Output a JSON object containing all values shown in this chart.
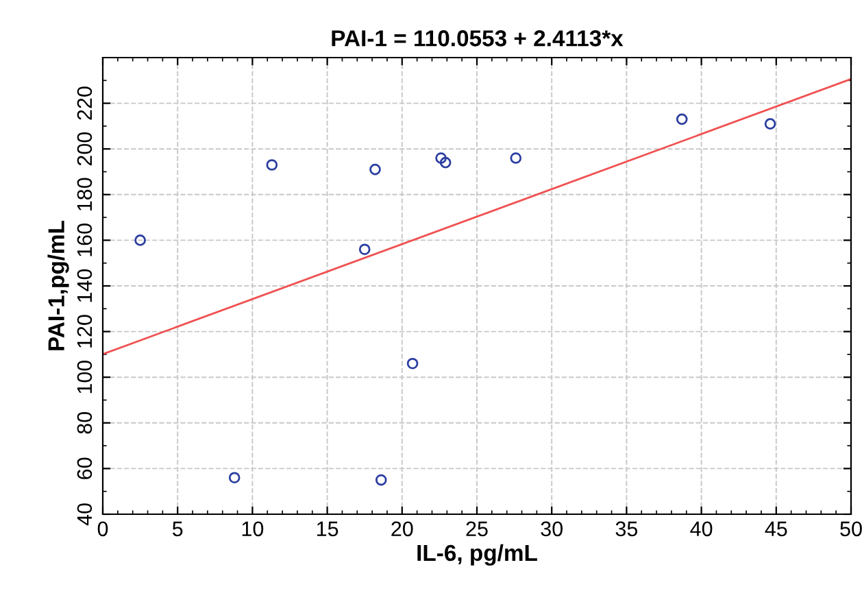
{
  "chart_data": {
    "type": "scatter",
    "title": "PAI-1 = 110.0553 + 2.4113*x",
    "xlabel": "IL-6, pg/mL",
    "ylabel": "PAI-1,pg/mL",
    "xlim": [
      0,
      50
    ],
    "xticks": [
      0,
      5,
      10,
      15,
      20,
      25,
      30,
      35,
      40,
      45,
      50
    ],
    "ylim": [
      40,
      240
    ],
    "yticks": [
      40,
      60,
      80,
      100,
      120,
      140,
      160,
      180,
      200,
      220
    ],
    "grid": true,
    "series": [
      {
        "marker": "circle",
        "color": "#2b3ea0",
        "x": [
          2.5,
          8.8,
          11.3,
          17.5,
          18.2,
          18.6,
          20.7,
          22.6,
          22.9,
          27.6,
          38.7,
          44.6
        ],
        "values": [
          160,
          56,
          193,
          156,
          191,
          55,
          106,
          196,
          194,
          196,
          213,
          211
        ]
      },
      {
        "type": "line",
        "marker": "none",
        "color": "#f05050",
        "x": [
          0,
          50
        ],
        "values": [
          110.1,
          230.6
        ]
      }
    ]
  }
}
